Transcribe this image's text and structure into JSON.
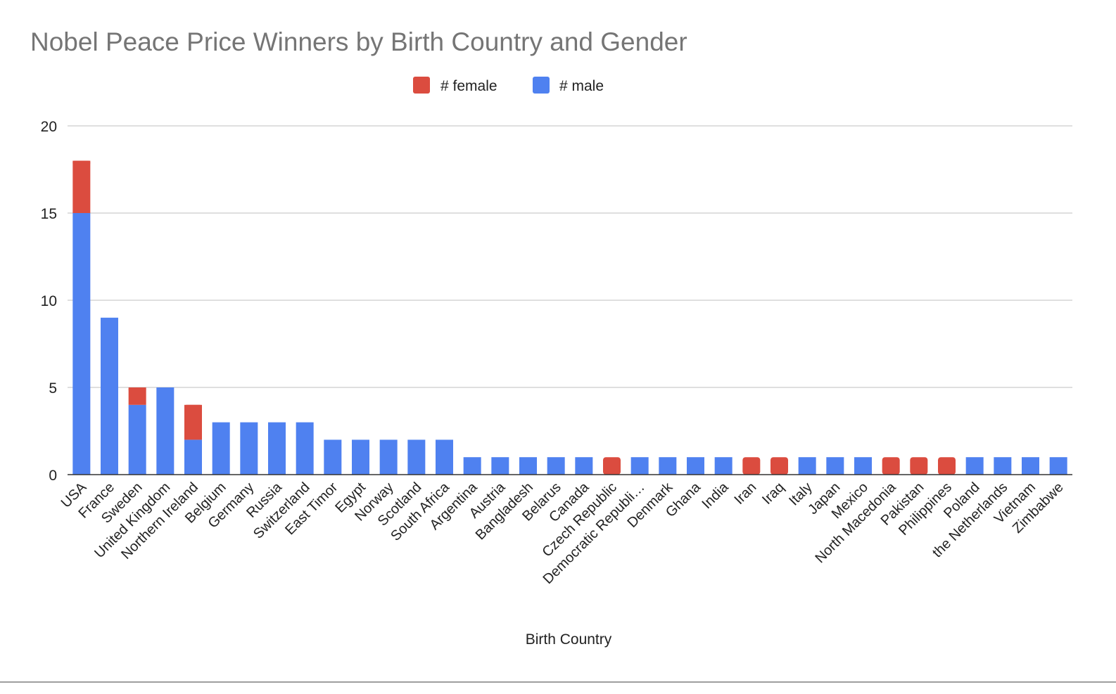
{
  "chart_data": {
    "type": "bar",
    "stacked": true,
    "title": "Nobel Peace Price Winners by Birth Country and Gender",
    "xlabel": "Birth Country",
    "ylabel": "",
    "ylim": [
      0,
      20
    ],
    "yticks": [
      0,
      5,
      10,
      15,
      20
    ],
    "grid": true,
    "legend_position": "top-center",
    "categories": [
      "USA",
      "France",
      "Sweden",
      "United Kingdom",
      "Northern Ireland",
      "Belgium",
      "Germany",
      "Russia",
      "Switzerland",
      "East Timor",
      "Egypt",
      "Norway",
      "Scotland",
      "South Africa",
      "Argentina",
      "Austria",
      "Bangladesh",
      "Belarus",
      "Canada",
      "Czech Republic",
      "Democratic Republi…",
      "Denmark",
      "Ghana",
      "India",
      "Iran",
      "Iraq",
      "Italy",
      "Japan",
      "Mexico",
      "North Macedonia",
      "Pakistan",
      "Philippines",
      "Poland",
      "the Netherlands",
      "Vietnam",
      "Zimbabwe"
    ],
    "series": [
      {
        "name": "# male",
        "color": "#4f81f0",
        "values": [
          15,
          9,
          4,
          5,
          2,
          3,
          3,
          3,
          3,
          2,
          2,
          2,
          2,
          2,
          1,
          1,
          1,
          1,
          1,
          0,
          1,
          1,
          1,
          1,
          0,
          0,
          1,
          1,
          1,
          0,
          0,
          0,
          1,
          1,
          1,
          1
        ]
      },
      {
        "name": "# female",
        "color": "#db4c3f",
        "values": [
          3,
          0,
          1,
          0,
          2,
          0,
          0,
          0,
          0,
          0,
          0,
          0,
          0,
          0,
          0,
          0,
          0,
          0,
          0,
          1,
          0,
          0,
          0,
          0,
          1,
          1,
          0,
          0,
          0,
          1,
          1,
          1,
          0,
          0,
          0,
          0
        ]
      }
    ],
    "legend_order": [
      "# female",
      "# male"
    ]
  }
}
